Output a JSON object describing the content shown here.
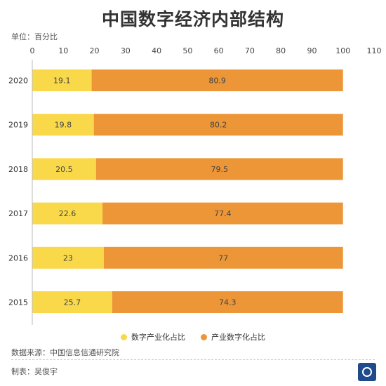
{
  "header": {
    "title": "中国数字经济内部结构",
    "unit": "单位：百分比"
  },
  "footer": {
    "source": "数据来源：中国信息信通研究院",
    "maker": "制表：吴俊宇"
  },
  "colors": {
    "digital_industrialization": "#f9d94a",
    "industrial_digitalization": "#ec9637",
    "axis": "#bbbbbb"
  },
  "chart_data": {
    "type": "bar",
    "orientation": "horizontal",
    "stacked": true,
    "title": "中国数字经济内部结构",
    "unit": "单位：百分比",
    "categories": [
      "2020",
      "2019",
      "2018",
      "2017",
      "2016",
      "2015"
    ],
    "series": [
      {
        "name": "数字产业化占比",
        "values": [
          19.1,
          19.8,
          20.5,
          22.6,
          23,
          25.7
        ]
      },
      {
        "name": "产业数字化占比",
        "values": [
          80.9,
          80.2,
          79.5,
          77.4,
          77,
          74.3
        ]
      }
    ],
    "xlim": [
      0,
      110
    ],
    "xticks": [
      0,
      10,
      20,
      30,
      40,
      50,
      60,
      70,
      80,
      90,
      100,
      110
    ],
    "grid": false,
    "legend": "bottom-center"
  }
}
